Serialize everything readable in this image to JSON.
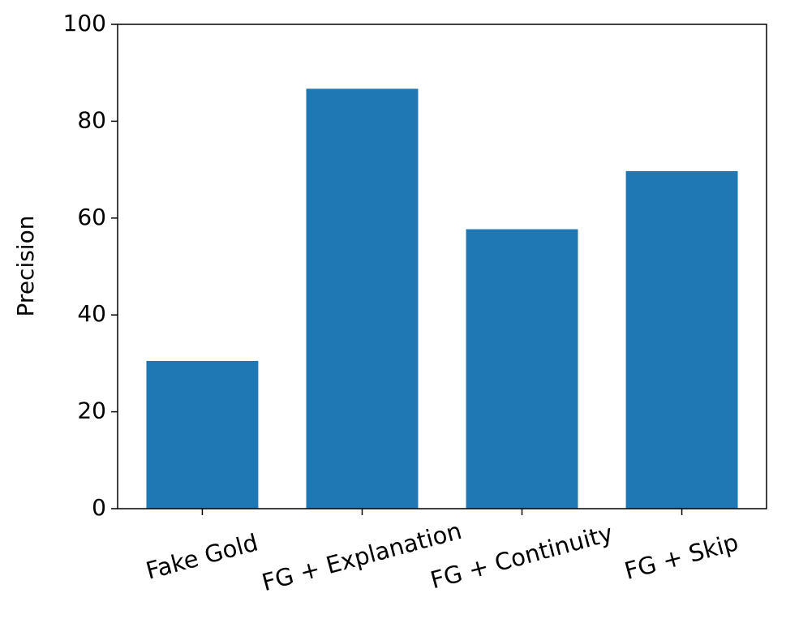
{
  "chart_data": {
    "type": "bar",
    "y_label": "Precision",
    "categories": [
      "Fake Gold",
      "FG + Explanation",
      "FG + Continuity",
      "FG + Skip"
    ],
    "values": [
      30.5,
      86.7,
      57.7,
      69.7
    ],
    "color": "#1f77b4",
    "ylim": [
      0,
      100
    ],
    "yticks": [
      0,
      20,
      40,
      60,
      80,
      100
    ]
  }
}
